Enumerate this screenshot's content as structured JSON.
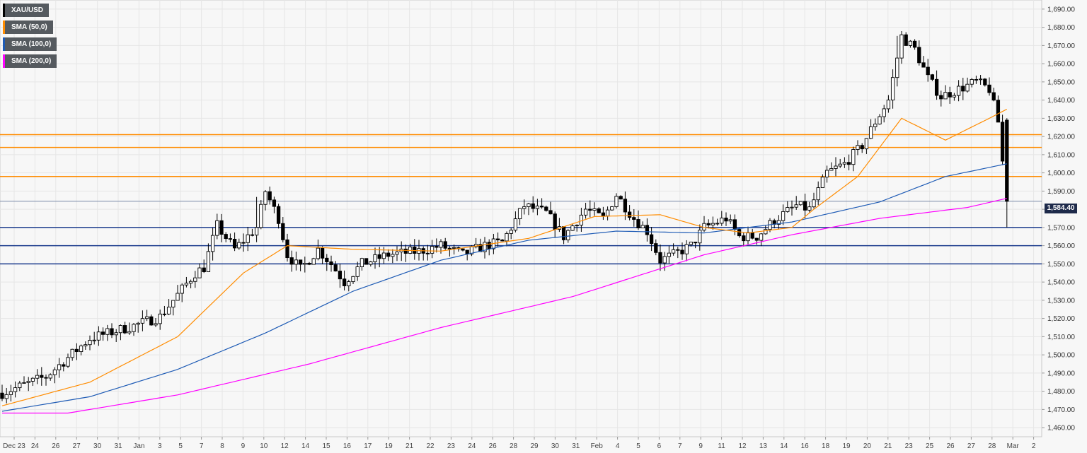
{
  "legend": {
    "items": [
      {
        "label": "XAU/USD",
        "color": "#000000"
      },
      {
        "label": "SMA (50,0)",
        "color": "#ff8c00"
      },
      {
        "label": "SMA (100,0)",
        "color": "#1e5bb5"
      },
      {
        "label": "SMA (200,0)",
        "color": "#ff00ff"
      }
    ]
  },
  "price_tag": {
    "label": "1,584.40",
    "value": 1584.4
  },
  "chart_data": {
    "type": "candlestick",
    "ylim": [
      1455,
      1695
    ],
    "y_ticks": [
      1460,
      1470,
      1480,
      1490,
      1500,
      1510,
      1520,
      1530,
      1540,
      1550,
      1560,
      1570,
      1580,
      1590,
      1600,
      1610,
      1620,
      1630,
      1640,
      1650,
      1660,
      1670,
      1680,
      1690
    ],
    "y_tick_labels": [
      "1,460.00",
      "1,470.00",
      "1,480.00",
      "1,490.00",
      "1,500.00",
      "1,510.00",
      "1,520.00",
      "1,530.00",
      "1,540.00",
      "1,550.00",
      "1,560.00",
      "1,570.00",
      "1,580.00",
      "1,590.00",
      "1,600.00",
      "1,610.00",
      "1,620.00",
      "1,630.00",
      "1,640.00",
      "1,650.00",
      "1,660.00",
      "1,670.00",
      "1,680.00",
      "1,690.00"
    ],
    "x_tick_labels": [
      "Dec 23",
      "24",
      "26",
      "27",
      "30",
      "31",
      "Jan",
      "3",
      "5",
      "7",
      "8",
      "9",
      "10",
      "12",
      "14",
      "15",
      "16",
      "17",
      "19",
      "21",
      "22",
      "23",
      "24",
      "26",
      "28",
      "29",
      "30",
      "31",
      "Feb",
      "4",
      "5",
      "6",
      "7",
      "9",
      "11",
      "12",
      "13",
      "14",
      "16",
      "18",
      "19",
      "20",
      "21",
      "23",
      "25",
      "26",
      "27",
      "28",
      "Mar",
      "2"
    ],
    "candle_count": 176,
    "horizontal_levels": [
      {
        "value": 1621,
        "color": "#ff8c00"
      },
      {
        "value": 1614,
        "color": "#ff8c00"
      },
      {
        "value": 1598,
        "color": "#ff8c00"
      },
      {
        "value": 1570,
        "color": "#1a3a8c"
      },
      {
        "value": 1560,
        "color": "#1a3a8c"
      },
      {
        "value": 1550,
        "color": "#1a3a8c"
      }
    ],
    "current_price": 1584.4,
    "close_anchors": [
      [
        0,
        1479
      ],
      [
        10,
        1488
      ],
      [
        20,
        1509
      ],
      [
        30,
        1516
      ],
      [
        36,
        1521
      ],
      [
        44,
        1545
      ],
      [
        46,
        1548
      ],
      [
        49,
        1571
      ],
      [
        53,
        1558
      ],
      [
        58,
        1570
      ],
      [
        60,
        1590
      ],
      [
        63,
        1575
      ],
      [
        65,
        1555
      ],
      [
        68,
        1547
      ],
      [
        72,
        1558
      ],
      [
        75,
        1550
      ],
      [
        78,
        1540
      ],
      [
        82,
        1550
      ],
      [
        88,
        1555
      ],
      [
        95,
        1557
      ],
      [
        100,
        1560
      ],
      [
        105,
        1555
      ],
      [
        110,
        1560
      ],
      [
        114,
        1562
      ],
      [
        119,
        1582
      ],
      [
        124,
        1578
      ],
      [
        128,
        1565
      ],
      [
        133,
        1580
      ],
      [
        137,
        1575
      ],
      [
        140,
        1588
      ],
      [
        144,
        1575
      ],
      [
        147,
        1568
      ],
      [
        150,
        1552
      ],
      [
        153,
        1555
      ],
      [
        157,
        1560
      ],
      [
        160,
        1570
      ],
      [
        165,
        1575
      ],
      [
        168,
        1565
      ],
      [
        172,
        1565
      ],
      [
        176,
        1574
      ],
      [
        181,
        1582
      ],
      [
        184,
        1580
      ],
      [
        188,
        1600
      ],
      [
        192,
        1605
      ],
      [
        196,
        1615
      ],
      [
        199,
        1628
      ],
      [
        202,
        1640
      ],
      [
        205,
        1675
      ],
      [
        208,
        1668
      ],
      [
        211,
        1652
      ],
      [
        214,
        1642
      ],
      [
        218,
        1646
      ],
      [
        222,
        1650
      ],
      [
        225,
        1646
      ],
      [
        227,
        1628
      ],
      [
        229,
        1584.4
      ]
    ],
    "sma50_anchors": [
      [
        0,
        1472
      ],
      [
        20,
        1485
      ],
      [
        40,
        1510
      ],
      [
        55,
        1545
      ],
      [
        65,
        1560
      ],
      [
        80,
        1558
      ],
      [
        100,
        1557
      ],
      [
        120,
        1564
      ],
      [
        135,
        1576
      ],
      [
        150,
        1577
      ],
      [
        160,
        1570
      ],
      [
        170,
        1567
      ],
      [
        180,
        1570
      ],
      [
        185,
        1580
      ],
      [
        195,
        1598
      ],
      [
        205,
        1630
      ],
      [
        215,
        1618
      ],
      [
        225,
        1630
      ],
      [
        229,
        1635
      ]
    ],
    "sma100_anchors": [
      [
        0,
        1469
      ],
      [
        20,
        1477
      ],
      [
        40,
        1492
      ],
      [
        60,
        1512
      ],
      [
        80,
        1535
      ],
      [
        100,
        1552
      ],
      [
        120,
        1563
      ],
      [
        140,
        1568
      ],
      [
        160,
        1567
      ],
      [
        180,
        1573
      ],
      [
        200,
        1584
      ],
      [
        215,
        1598
      ],
      [
        229,
        1605
      ]
    ],
    "sma200_anchors": [
      [
        0,
        1468
      ],
      [
        15,
        1468
      ],
      [
        40,
        1478
      ],
      [
        70,
        1495
      ],
      [
        100,
        1515
      ],
      [
        130,
        1532
      ],
      [
        160,
        1555
      ],
      [
        180,
        1566
      ],
      [
        200,
        1575
      ],
      [
        220,
        1581
      ],
      [
        229,
        1586
      ]
    ]
  }
}
